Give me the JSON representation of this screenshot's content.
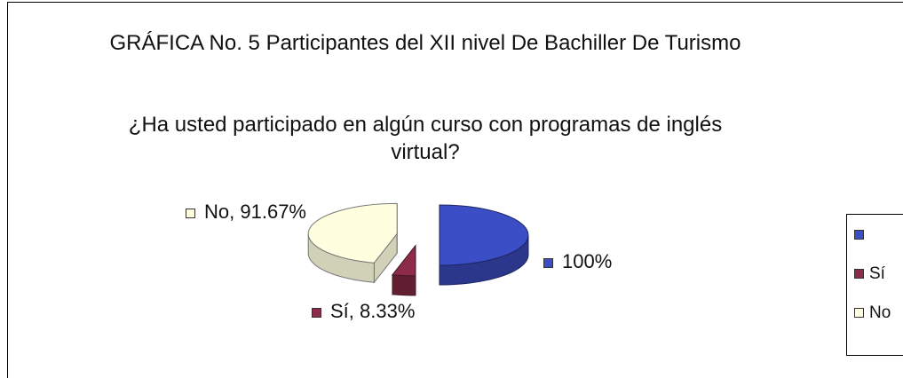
{
  "chart_data": {
    "type": "pie3d",
    "title": "GRÁFICA No. 5 Participantes del XII nivel De Bachiller De Turismo",
    "subtitle": "¿Ha usted participado en algún curso con programas de inglés virtual?",
    "categories": [
      null,
      "Sí",
      "No"
    ],
    "values": [
      100,
      8.33,
      91.67
    ],
    "value_labels": [
      "100%",
      "Sí, 8.33%",
      "No, 91.67%"
    ],
    "colors": [
      "#3c4ec6",
      "#8c2c48",
      "#ffffe0"
    ],
    "legend": "right"
  }
}
